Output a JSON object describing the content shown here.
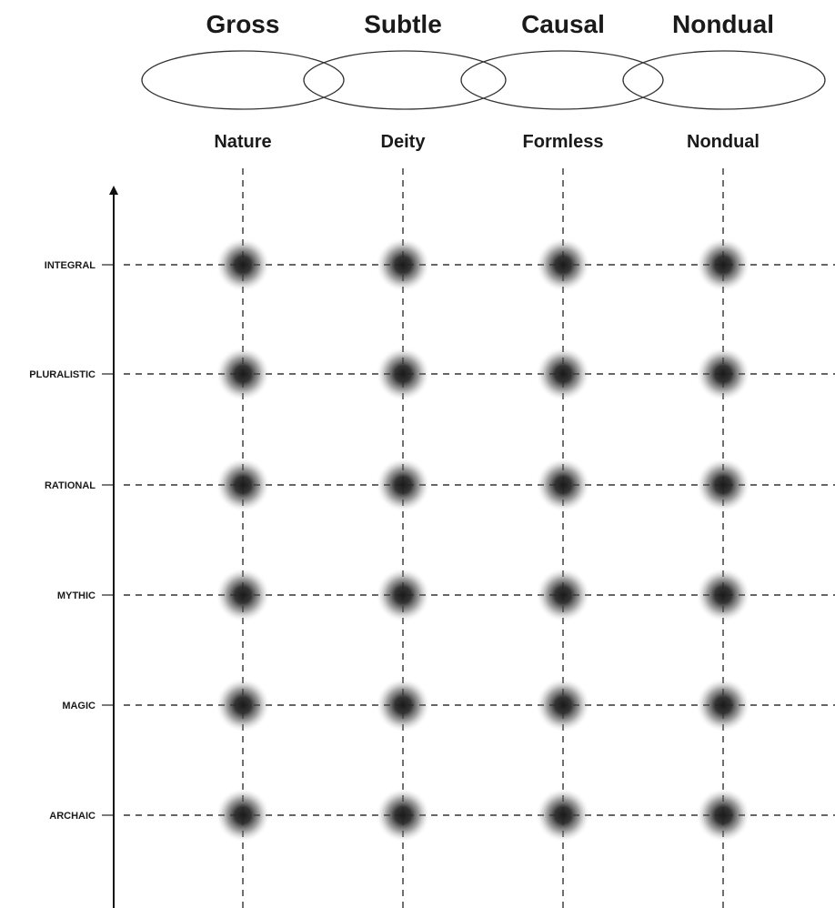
{
  "states": [
    {
      "title": "Gross",
      "subtitle": "Nature"
    },
    {
      "title": "Subtle",
      "subtitle": "Deity"
    },
    {
      "title": "Causal",
      "subtitle": "Formless"
    },
    {
      "title": "Nondual",
      "subtitle": "Nondual"
    }
  ],
  "levels": [
    "INTEGRAL",
    "PLURALISTIC",
    "RATIONAL",
    "MYTHIC",
    "MAGIC",
    "ARCHAIC"
  ]
}
